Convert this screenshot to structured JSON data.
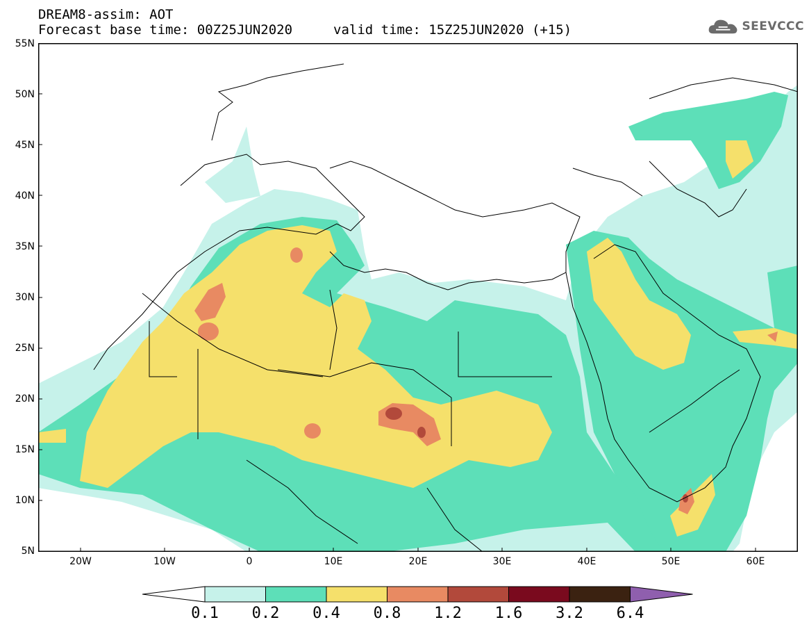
{
  "header": {
    "title": "DREAM8-assim: AOT",
    "base_time": "Forecast base time: 00Z25JUN2020",
    "valid_time": "valid time: 15Z25JUN2020 (+15)",
    "logo": "SEEVCCC"
  },
  "map": {
    "variable": "AOT",
    "lat_range": [
      5,
      55
    ],
    "lon_range": [
      -25,
      65
    ],
    "y_ticks": [
      "55N",
      "50N",
      "45N",
      "40N",
      "35N",
      "30N",
      "25N",
      "20N",
      "15N",
      "10N",
      "5N"
    ],
    "x_ticks": [
      "20W",
      "10W",
      "0",
      "10E",
      "20E",
      "30E",
      "40E",
      "50E",
      "60E"
    ]
  },
  "legend": {
    "levels": [
      "0.1",
      "0.2",
      "0.4",
      "0.8",
      "1.2",
      "1.6",
      "3.2",
      "6.4"
    ],
    "colors": [
      "#ffffff",
      "#c6f2ea",
      "#5ddfb8",
      "#f5e06b",
      "#e88a62",
      "#b2493b",
      "#7a0a1e",
      "#3b2211",
      "#8f5fae"
    ]
  }
}
